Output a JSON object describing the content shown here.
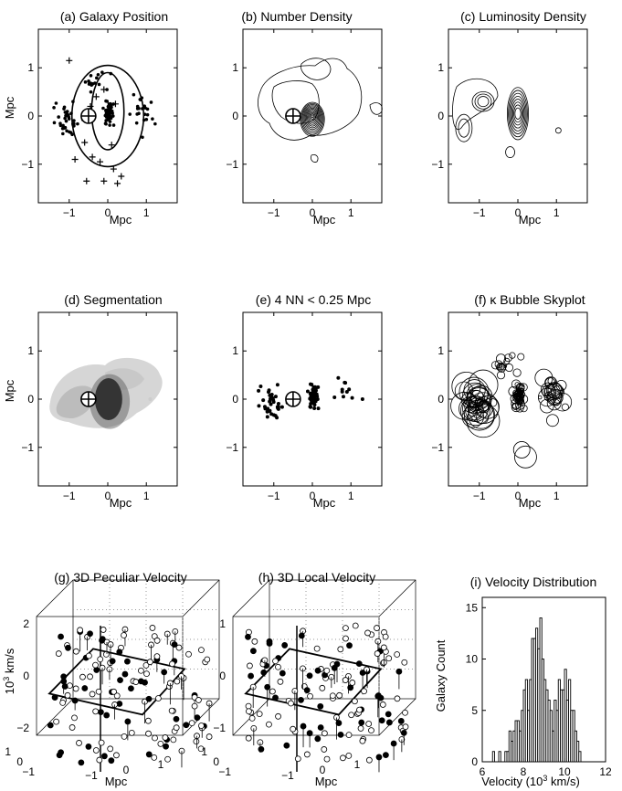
{
  "chart_data": [
    {
      "id": "a",
      "type": "scatter",
      "title": "(a)  Galaxy  Position",
      "xlabel": "Mpc",
      "ylabel": "Mpc",
      "xlim": [
        -1.8,
        1.8
      ],
      "ylim": [
        -1.8,
        1.8
      ],
      "xticks": [
        -1,
        0,
        1
      ],
      "yticks": [
        1,
        0,
        -1
      ],
      "tick_labels_x": [
        "−1",
        "0",
        "1"
      ],
      "tick_labels_y": [
        "1",
        "0",
        "−1"
      ],
      "observer": [
        -0.5,
        0
      ],
      "ellipses": [
        {
          "cx": 0.0,
          "cy": 0.1,
          "rx": 0.42,
          "ry": 0.8
        },
        {
          "cx": 0.0,
          "cy": 0.0,
          "rx": 0.93,
          "ry": 1.05
        }
      ],
      "note": "dots: galaxies; crosses: outlying galaxies"
    },
    {
      "id": "b",
      "type": "contour",
      "title": "(b)  Number Density",
      "xlabel": "Mpc",
      "ylabel": "Mpc",
      "xlim": [
        -1.8,
        1.8
      ],
      "ylim": [
        -1.8,
        1.8
      ],
      "xticks": [
        -1,
        0,
        1
      ],
      "yticks": [
        1,
        0,
        -1
      ],
      "tick_labels_x": [
        "−1",
        "0",
        "1"
      ],
      "tick_labels_y": [
        "1",
        "0",
        "−1"
      ],
      "observer": [
        -0.5,
        0
      ],
      "peaks": [
        {
          "x": 0.0,
          "y": 0.0,
          "levels": 12
        }
      ]
    },
    {
      "id": "c",
      "type": "contour",
      "title": "(c)  Luminosity Density",
      "xlabel": "Mpc",
      "ylabel": "Mpc",
      "xlim": [
        -1.8,
        1.8
      ],
      "ylim": [
        -1.8,
        1.8
      ],
      "xticks": [
        -1,
        0,
        1
      ],
      "yticks": [
        1,
        0,
        -1
      ],
      "tick_labels_x": [
        "−1",
        "0",
        "1"
      ],
      "tick_labels_y": [
        "1",
        "0",
        "−1"
      ],
      "peaks": [
        {
          "x": 0.0,
          "y": 0.05,
          "levels": 8
        },
        {
          "x": -0.9,
          "y": 0.3,
          "levels": 3
        },
        {
          "x": -1.4,
          "y": -0.25,
          "levels": 2
        }
      ]
    },
    {
      "id": "d",
      "type": "heatmap",
      "title": "(d)  Segmentation",
      "xlabel": "Mpc",
      "ylabel": "Mpc",
      "xlim": [
        -1.8,
        1.8
      ],
      "ylim": [
        -1.8,
        1.8
      ],
      "xticks": [
        -1,
        0,
        1
      ],
      "yticks": [
        1,
        0,
        -1
      ],
      "tick_labels_x": [
        "−1",
        "0",
        "1"
      ],
      "tick_labels_y": [
        "1",
        "0",
        "−1"
      ],
      "observer": [
        -0.5,
        0
      ]
    },
    {
      "id": "e",
      "type": "scatter",
      "title": "(e)  4 NN < 0.25 Mpc",
      "xlabel": "Mpc",
      "ylabel": "",
      "xlim": [
        -1.8,
        1.8
      ],
      "ylim": [
        -1.8,
        1.8
      ],
      "xticks": [
        -1,
        0,
        1
      ],
      "yticks": [
        1,
        0,
        -1
      ],
      "tick_labels_x": [
        "−1",
        "0",
        "1"
      ],
      "tick_labels_y": [
        "1",
        "0",
        "−1"
      ],
      "observer": [
        -0.5,
        0
      ]
    },
    {
      "id": "f",
      "type": "scatter",
      "title": "(f)  κ Bubble Skyplot",
      "xlabel": "Mpc",
      "ylabel": "",
      "xlim": [
        -1.8,
        1.8
      ],
      "ylim": [
        -1.8,
        1.8
      ],
      "xticks": [
        -1,
        0,
        1
      ],
      "yticks": [
        1,
        0,
        -1
      ],
      "tick_labels_x": [
        "−1",
        "0",
        "1"
      ],
      "tick_labels_y": [
        "1",
        "0",
        "−1"
      ]
    },
    {
      "id": "g",
      "type": "scatter3d",
      "title": "(g) 3D Peculiar Velocity",
      "xlabel": "Mpc",
      "ylabel": "10³ km/s",
      "zticks": [
        "2",
        "0",
        "−2"
      ],
      "depth_ticks": [
        "1",
        "0",
        "−1"
      ],
      "x_ticks": [
        "−1",
        "0",
        "1"
      ]
    },
    {
      "id": "h",
      "type": "scatter3d",
      "title": "(h) 3D Local Velocity",
      "xlabel": "Mpc",
      "ylabel": "",
      "zticks": [
        "1",
        "0",
        "−1"
      ],
      "depth_ticks": [
        "1",
        "0",
        "−1"
      ],
      "x_ticks": [
        "−1",
        "0",
        "1"
      ]
    },
    {
      "id": "i",
      "type": "bar",
      "title": "(i) Velocity Distribution",
      "xlabel": "Velocity (10³ km/s)",
      "ylabel": "Galaxy Count",
      "xlim": [
        6,
        12
      ],
      "ylim": [
        0,
        16
      ],
      "xticks": [
        6,
        8,
        10,
        12
      ],
      "yticks": [
        0,
        5,
        10,
        15
      ],
      "bin_start": 6.5,
      "bin_width": 0.1,
      "counts": [
        1,
        0,
        0,
        1,
        0,
        0,
        1,
        1,
        3,
        2,
        3,
        4,
        4,
        3,
        5,
        7,
        8,
        5,
        8,
        12,
        12,
        13,
        11,
        14,
        10,
        8,
        7,
        6,
        5,
        3,
        6,
        5,
        8,
        7,
        7,
        9,
        6,
        8,
        5,
        5,
        3,
        2,
        1
      ]
    }
  ]
}
